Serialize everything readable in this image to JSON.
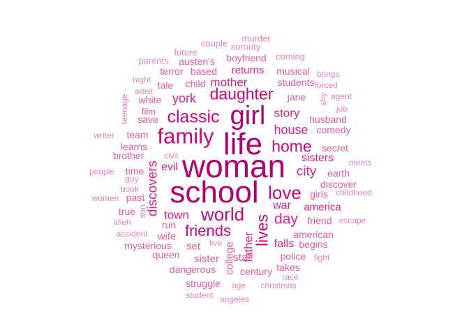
{
  "palette": {
    "t1": "#b5006e",
    "t2": "#d0057f",
    "t3": "#e0208c",
    "t4": "#ea5aa3",
    "t5": "#f183b8"
  },
  "words": [
    {
      "text": "woman",
      "tier": 1
    },
    {
      "text": "school",
      "tier": 1
    },
    {
      "text": "life",
      "tier": 1
    },
    {
      "text": "girl",
      "tier": 1
    },
    {
      "text": "family",
      "tier": 2
    },
    {
      "text": "classic",
      "tier": 2
    },
    {
      "text": "daughter",
      "tier": 2
    },
    {
      "text": "love",
      "tier": 2
    },
    {
      "text": "world",
      "tier": 2
    },
    {
      "text": "home",
      "tier": 2
    },
    {
      "text": "lives",
      "tier": 2
    },
    {
      "text": "friends",
      "tier": 2
    },
    {
      "text": "day",
      "tier": 3
    },
    {
      "text": "discovers",
      "tier": 3
    },
    {
      "text": "city",
      "tier": 3
    },
    {
      "text": "house",
      "tier": 3
    },
    {
      "text": "story",
      "tier": 3
    },
    {
      "text": "york",
      "tier": 3
    },
    {
      "text": "mother",
      "tier": 3
    },
    {
      "text": "father",
      "tier": 3
    },
    {
      "text": "sisters",
      "tier": 3
    },
    {
      "text": "town",
      "tier": 3
    },
    {
      "text": "war",
      "tier": 3
    },
    {
      "text": "america",
      "tier": 3
    },
    {
      "text": "falls",
      "tier": 3
    },
    {
      "text": "evil",
      "tier": 3
    },
    {
      "text": "returns",
      "tier": 3
    },
    {
      "text": "students",
      "tier": 4
    },
    {
      "text": "jane",
      "tier": 4
    },
    {
      "text": "boyfriend",
      "tier": 4
    },
    {
      "text": "based",
      "tier": 4
    },
    {
      "text": "child",
      "tier": 4
    },
    {
      "text": "tale",
      "tier": 4
    },
    {
      "text": "white",
      "tier": 4
    },
    {
      "text": "husband",
      "tier": 4
    },
    {
      "text": "comedy",
      "tier": 4
    },
    {
      "text": "secret",
      "tier": 4
    },
    {
      "text": "discover",
      "tier": 4
    },
    {
      "text": "earth",
      "tier": 4
    },
    {
      "text": "girls",
      "tier": 4
    },
    {
      "text": "friend",
      "tier": 4
    },
    {
      "text": "american",
      "tier": 4
    },
    {
      "text": "begins",
      "tier": 4
    },
    {
      "text": "police",
      "tier": 4
    },
    {
      "text": "star",
      "tier": 4
    },
    {
      "text": "sister",
      "tier": 4
    },
    {
      "text": "set",
      "tier": 4
    },
    {
      "text": "wife",
      "tier": 4
    },
    {
      "text": "college",
      "tier": 4
    },
    {
      "text": "century",
      "tier": 4
    },
    {
      "text": "dangerous",
      "tier": 4
    },
    {
      "text": "mysterious",
      "tier": 4
    },
    {
      "text": "struggle",
      "tier": 4
    },
    {
      "text": "takes",
      "tier": 4
    },
    {
      "text": "musical",
      "tier": 4
    },
    {
      "text": "austen's",
      "tier": 4
    },
    {
      "text": "terror",
      "tier": 4
    },
    {
      "text": "save",
      "tier": 4
    },
    {
      "text": "team",
      "tier": 4
    },
    {
      "text": "learns",
      "tier": 4
    },
    {
      "text": "brother",
      "tier": 4
    },
    {
      "text": "time",
      "tier": 4
    },
    {
      "text": "past",
      "tier": 4
    },
    {
      "text": "true",
      "tier": 4
    },
    {
      "text": "run",
      "tier": 4
    },
    {
      "text": "queen",
      "tier": 4
    },
    {
      "text": "film",
      "tier": 4
    },
    {
      "text": "murder",
      "tier": 5
    },
    {
      "text": "sorority",
      "tier": 5
    },
    {
      "text": "couple",
      "tier": 5
    },
    {
      "text": "future",
      "tier": 5
    },
    {
      "text": "parents",
      "tier": 5
    },
    {
      "text": "coming",
      "tier": 5
    },
    {
      "text": "brings",
      "tier": 5
    },
    {
      "text": "night",
      "tier": 5
    },
    {
      "text": "artist",
      "tier": 5
    },
    {
      "text": "forced",
      "tier": 5
    },
    {
      "text": "agent",
      "tier": 5
    },
    {
      "text": "shy",
      "tier": 5
    },
    {
      "text": "job",
      "tier": 5
    },
    {
      "text": "teenage",
      "tier": 5
    },
    {
      "text": "writer",
      "tier": 5
    },
    {
      "text": "civil",
      "tier": 5
    },
    {
      "text": "meets",
      "tier": 5
    },
    {
      "text": "people",
      "tier": 5
    },
    {
      "text": "guy",
      "tier": 5
    },
    {
      "text": "book",
      "tier": 5
    },
    {
      "text": "childhood",
      "tier": 5
    },
    {
      "text": "women",
      "tier": 5
    },
    {
      "text": "son",
      "tier": 5
    },
    {
      "text": "alien",
      "tier": 5
    },
    {
      "text": "escape",
      "tier": 5
    },
    {
      "text": "accident",
      "tier": 5
    },
    {
      "text": "live",
      "tier": 5
    },
    {
      "text": "fight",
      "tier": 5
    },
    {
      "text": "race",
      "tier": 5
    },
    {
      "text": "age",
      "tier": 5
    },
    {
      "text": "christmas",
      "tier": 5
    },
    {
      "text": "student",
      "tier": 5
    },
    {
      "text": "angeles",
      "tier": 5
    }
  ]
}
